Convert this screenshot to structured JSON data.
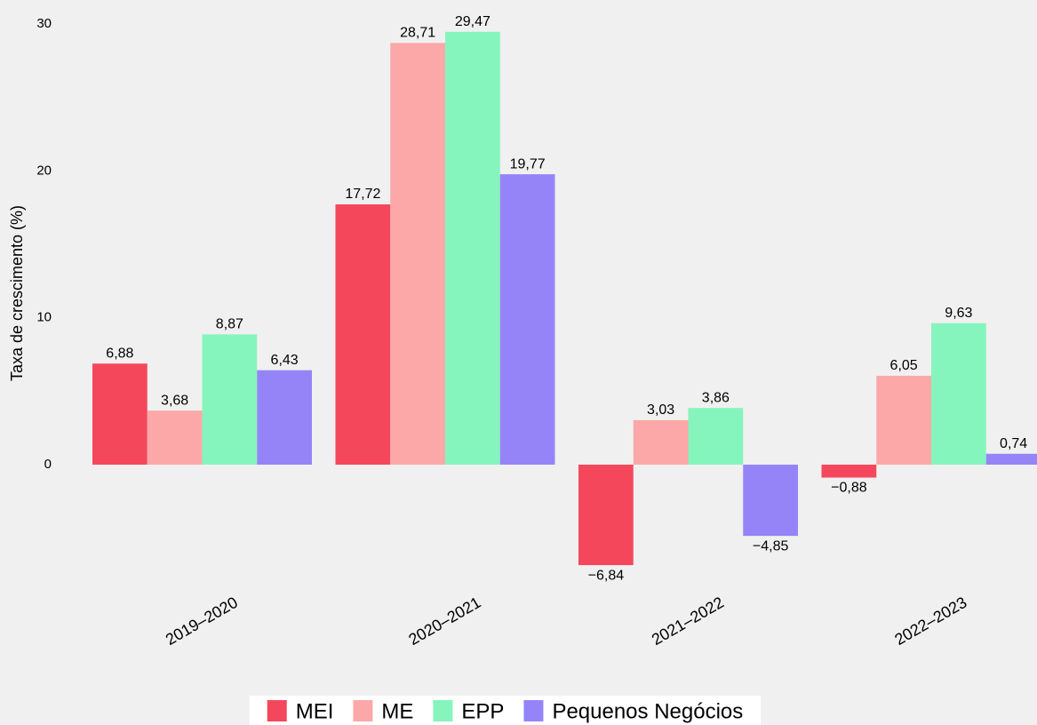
{
  "chart_data": {
    "type": "bar",
    "y_label": "Taxa de crescimento (%)",
    "categories": [
      "2019–2020",
      "2020–2021",
      "2021–2022",
      "2022–2023"
    ],
    "series": [
      {
        "name": "MEI",
        "color": "#f5475c",
        "values": [
          6.88,
          17.72,
          -6.84,
          -0.88
        ],
        "value_labels": [
          "6,88",
          "17,72",
          "−6,84",
          "−0,88"
        ]
      },
      {
        "name": "ME",
        "color": "#fca8a8",
        "values": [
          3.68,
          28.71,
          3.03,
          6.05
        ],
        "value_labels": [
          "3,68",
          "28,71",
          "3,03",
          "6,05"
        ]
      },
      {
        "name": "EPP",
        "color": "#86f5bd",
        "values": [
          8.87,
          29.47,
          3.86,
          9.63
        ],
        "value_labels": [
          "8,87",
          "29,47",
          "3,86",
          "9,63"
        ]
      },
      {
        "name": "Pequenos Negócios",
        "color": "#9584f8",
        "values": [
          6.43,
          19.77,
          -4.85,
          0.74
        ],
        "value_labels": [
          "6,43",
          "19,77",
          "−4,85",
          "0,74"
        ]
      }
    ],
    "ylim": [
      -7.2,
      30.4
    ],
    "yticks": [
      0,
      10,
      20,
      30
    ],
    "grid": false,
    "legend": "bottom"
  }
}
